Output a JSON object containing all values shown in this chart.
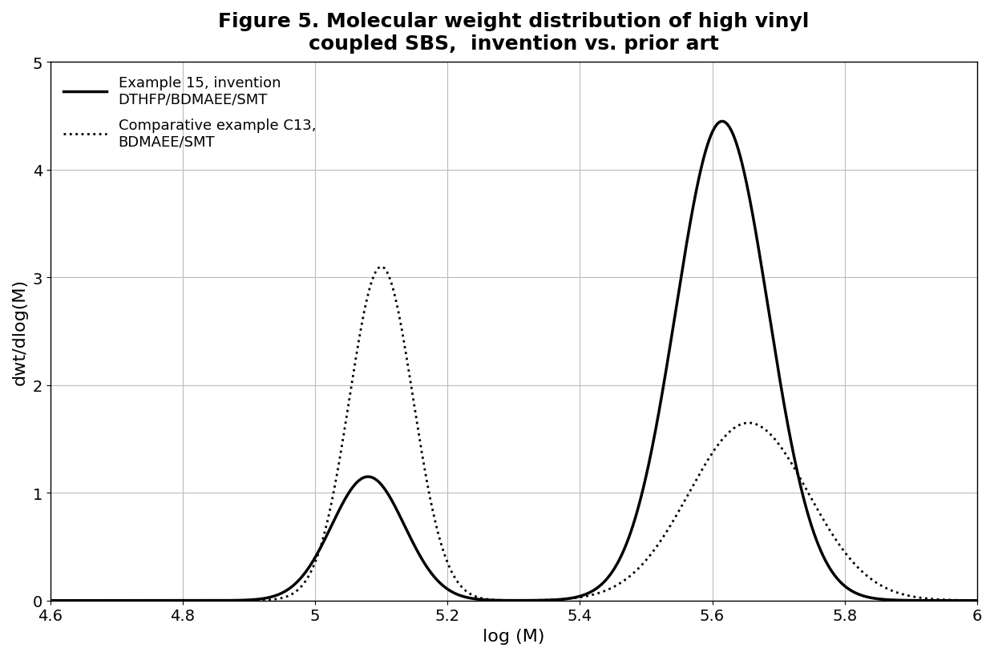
{
  "title_line1": "Figure 5. Molecular weight distribution of high vinyl",
  "title_line2": "coupled SBS,  invention vs. prior art",
  "xlabel": "log (M)",
  "ylabel": "dwt/dlog(M)",
  "xlim": [
    4.6,
    6.0
  ],
  "ylim": [
    0,
    5
  ],
  "xticks": [
    4.6,
    4.8,
    5.0,
    5.2,
    5.4,
    5.6,
    5.8,
    6.0
  ],
  "yticks": [
    0,
    1,
    2,
    3,
    4,
    5
  ],
  "legend1_label_line1": "Example 15, invention",
  "legend1_label_line2": "DTHFP/BDMAEE/SMT",
  "legend2_label_line1": "Comparative example C13,",
  "legend2_label_line2": "BDMAEE/SMT",
  "solid_peak1_mu": 5.08,
  "solid_peak1_amp": 1.15,
  "solid_peak1_sigma": 0.055,
  "solid_peak2_mu": 5.615,
  "solid_peak2_amp": 4.45,
  "solid_peak2_sigma": 0.07,
  "dot_peak1_mu": 5.1,
  "dot_peak1_amp": 3.1,
  "dot_peak1_sigma": 0.048,
  "dot_peak2_mu": 5.655,
  "dot_peak2_amp": 1.65,
  "dot_peak2_sigma": 0.09,
  "line_color": "#000000",
  "background_color": "#ffffff",
  "grid_color": "#bbbbbb",
  "title_fontsize": 18,
  "label_fontsize": 16,
  "tick_fontsize": 14,
  "legend_fontsize": 13
}
